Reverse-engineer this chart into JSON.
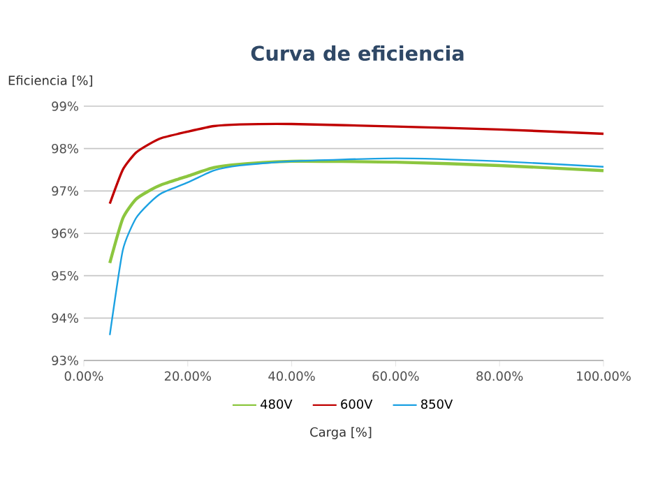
{
  "chart_data": {
    "type": "line",
    "title": "Curva de eficiencia",
    "xlabel": "Carga [%]",
    "ylabel": "Eficiencia [%]",
    "xlim": [
      0,
      100
    ],
    "ylim": [
      93,
      99
    ],
    "xticks": [
      {
        "value": 0,
        "label": "0.00%"
      },
      {
        "value": 20,
        "label": "20.00%"
      },
      {
        "value": 40,
        "label": "40.00%"
      },
      {
        "value": 60,
        "label": "60.00%"
      },
      {
        "value": 80,
        "label": "80.00%"
      },
      {
        "value": 100,
        "label": "100.00%"
      }
    ],
    "yticks": [
      {
        "value": 93,
        "label": "93%"
      },
      {
        "value": 94,
        "label": "94%"
      },
      {
        "value": 95,
        "label": "95%"
      },
      {
        "value": 96,
        "label": "96%"
      },
      {
        "value": 97,
        "label": "97%"
      },
      {
        "value": 98,
        "label": "98%"
      },
      {
        "value": 99,
        "label": "99%"
      }
    ],
    "x": [
      5,
      7.5,
      10,
      12.5,
      15,
      20,
      25,
      30,
      40,
      60,
      80,
      100
    ],
    "series": [
      {
        "name": "480V",
        "color": "#8cc63f",
        "values": [
          95.3,
          96.35,
          96.8,
          97.0,
          97.15,
          97.35,
          97.55,
          97.63,
          97.7,
          97.68,
          97.6,
          97.48
        ]
      },
      {
        "name": "600V",
        "color": "#c00000",
        "values": [
          96.7,
          97.5,
          97.9,
          98.1,
          98.25,
          98.4,
          98.53,
          98.57,
          98.58,
          98.52,
          98.45,
          98.35
        ]
      },
      {
        "name": "850V",
        "color": "#1ba1e2",
        "values": [
          93.6,
          95.6,
          96.35,
          96.7,
          96.95,
          97.2,
          97.48,
          97.6,
          97.7,
          97.77,
          97.7,
          97.57
        ]
      }
    ],
    "grid": "y",
    "legend": "bottom",
    "marker": "none",
    "line_style": "solid"
  }
}
